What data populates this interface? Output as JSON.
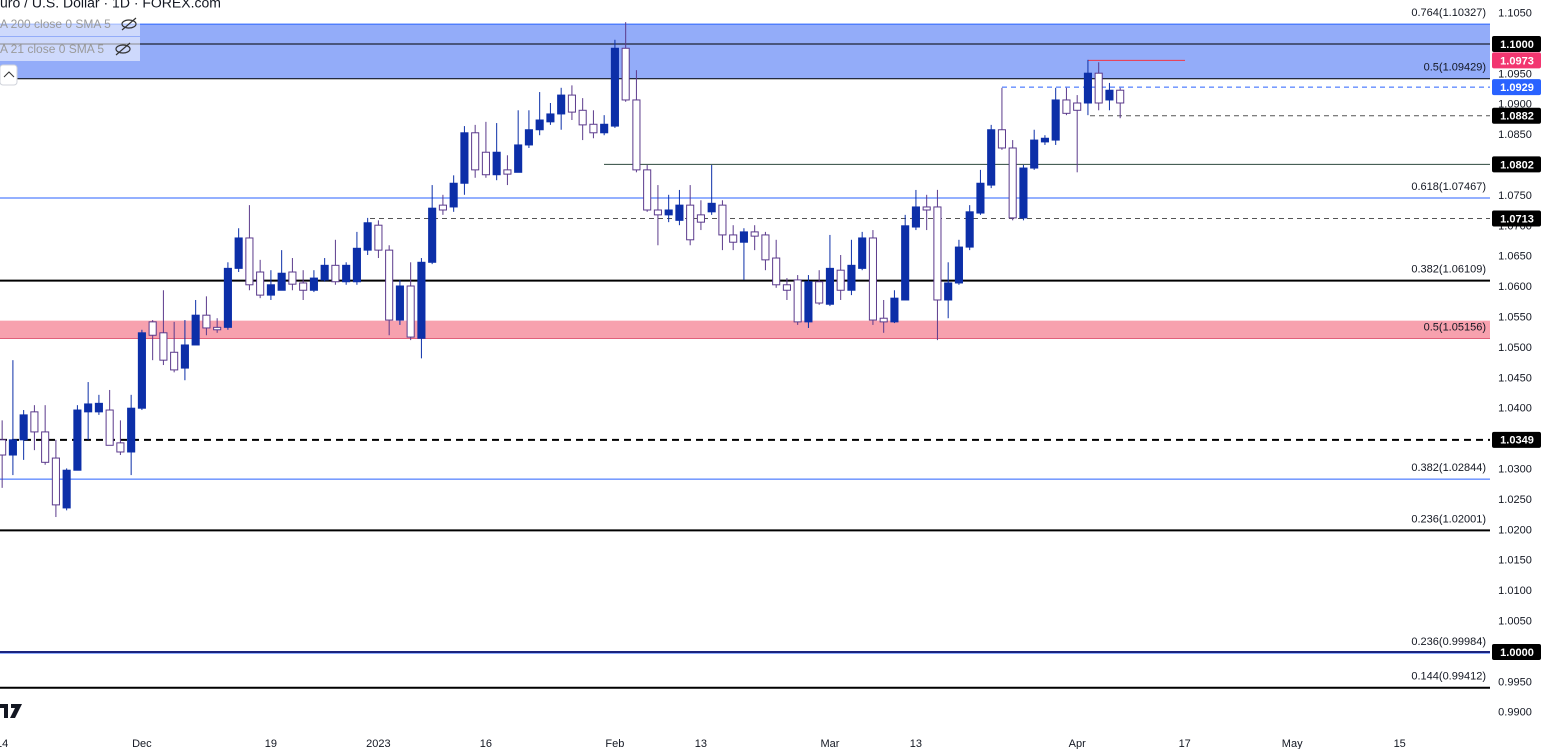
{
  "header": {
    "title": "uro / U.S. Dollar · 1D · FOREX.com",
    "indicators": [
      "A 200 close 0 SMA 5",
      "A 21 close 0 SMA 5"
    ]
  },
  "chart_data": {
    "type": "candlestick",
    "up_color": "#0c2fa8",
    "down_color": "#ffffff",
    "down_border": "#5b3a8c",
    "ohlc": [
      [
        1.0349,
        1.0381,
        1.027,
        1.0324
      ],
      [
        1.0324,
        1.048,
        1.0291,
        1.0349
      ],
      [
        1.0349,
        1.0398,
        1.0316,
        1.039
      ],
      [
        1.0395,
        1.0406,
        1.0332,
        1.0362
      ],
      [
        1.0362,
        1.0406,
        1.0308,
        1.0312
      ],
      [
        1.0319,
        1.0349,
        1.0222,
        1.0242
      ],
      [
        1.0237,
        1.0302,
        1.0233,
        1.0299
      ],
      [
        1.0299,
        1.0406,
        1.0299,
        1.0398
      ],
      [
        1.0395,
        1.0444,
        1.0349,
        1.0408
      ],
      [
        1.0395,
        1.0423,
        1.039,
        1.0409
      ],
      [
        1.0398,
        1.0431,
        1.034,
        1.034
      ],
      [
        1.0344,
        1.0381,
        1.0324,
        1.0329
      ],
      [
        1.0329,
        1.0423,
        1.0291,
        1.0401
      ],
      [
        1.0401,
        1.053,
        1.0398,
        1.0525
      ],
      [
        1.0543,
        1.0546,
        1.048,
        1.0521
      ],
      [
        1.0525,
        1.0595,
        1.0472,
        1.048
      ],
      [
        1.0493,
        1.0543,
        1.046,
        1.0464
      ],
      [
        1.0467,
        1.0546,
        1.0447,
        1.0505
      ],
      [
        1.0505,
        1.0579,
        1.0505,
        1.0554
      ],
      [
        1.0554,
        1.0585,
        1.0521,
        1.0533
      ],
      [
        1.0534,
        1.0549,
        1.0525,
        1.053
      ],
      [
        1.0534,
        1.0641,
        1.053,
        1.0631
      ],
      [
        1.0631,
        1.0697,
        1.0625,
        1.0681
      ],
      [
        1.0681,
        1.0735,
        1.0595,
        1.0604
      ],
      [
        1.0625,
        1.0645,
        1.0582,
        1.0587
      ],
      [
        1.0587,
        1.0628,
        1.0579,
        1.0604
      ],
      [
        1.0595,
        1.0661,
        1.0595,
        1.0623
      ],
      [
        1.0625,
        1.0648,
        1.0595,
        1.0605
      ],
      [
        1.0607,
        1.0628,
        1.0579,
        1.0595
      ],
      [
        1.0595,
        1.0628,
        1.0592,
        1.0615
      ],
      [
        1.0612,
        1.0648,
        1.0609,
        1.0636
      ],
      [
        1.0636,
        1.0678,
        1.0604,
        1.0609
      ],
      [
        1.0609,
        1.0641,
        1.0604,
        1.0636
      ],
      [
        1.0609,
        1.0691,
        1.0604,
        1.0664
      ],
      [
        1.0661,
        1.0714,
        1.0653,
        1.0706
      ],
      [
        1.0702,
        1.071,
        1.0648,
        1.0661
      ],
      [
        1.0661,
        1.0669,
        1.0521,
        1.0546
      ],
      [
        1.0546,
        1.0612,
        1.0538,
        1.0602
      ],
      [
        1.0602,
        1.0641,
        1.0513,
        1.0518
      ],
      [
        1.0516,
        1.0648,
        1.0483,
        1.0641
      ],
      [
        1.0641,
        1.0768,
        1.0638,
        1.073
      ],
      [
        1.0735,
        1.0752,
        1.0719,
        1.0727
      ],
      [
        1.0732,
        1.0784,
        1.0724,
        1.0771
      ],
      [
        1.0771,
        1.0865,
        1.0752,
        1.0854
      ],
      [
        1.0854,
        1.0867,
        1.078,
        1.0793
      ],
      [
        1.0822,
        1.0872,
        1.078,
        1.0785
      ],
      [
        1.0785,
        1.087,
        1.0776,
        1.0822
      ],
      [
        1.0793,
        1.0817,
        1.0768,
        1.0786
      ],
      [
        1.0789,
        1.0891,
        1.0789,
        1.0834
      ],
      [
        1.0834,
        1.0891,
        1.0829,
        1.0859
      ],
      [
        1.0859,
        1.0921,
        1.085,
        1.0875
      ],
      [
        1.0872,
        1.0903,
        1.0867,
        1.0885
      ],
      [
        1.0885,
        1.0928,
        1.0859,
        1.0916
      ],
      [
        1.0916,
        1.0932,
        1.0875,
        1.0888
      ],
      [
        1.0891,
        1.0911,
        1.0842,
        1.0867
      ],
      [
        1.0868,
        1.0891,
        1.0845,
        1.0854
      ],
      [
        1.0854,
        1.0883,
        1.085,
        1.0868
      ],
      [
        1.0865,
        1.1007,
        1.0862,
        1.0993
      ],
      [
        1.0993,
        1.1036,
        1.0905,
        1.0908
      ],
      [
        1.0908,
        1.0957,
        1.0789,
        1.0793
      ],
      [
        1.0793,
        1.0801,
        1.0724,
        1.0727
      ],
      [
        1.0727,
        1.0768,
        1.0669,
        1.0719
      ],
      [
        1.0719,
        1.0752,
        1.0707,
        1.0727
      ],
      [
        1.071,
        1.076,
        1.0702,
        1.0735
      ],
      [
        1.0735,
        1.0768,
        1.0669,
        1.0678
      ],
      [
        1.0719,
        1.0743,
        1.0694,
        1.0707
      ],
      [
        1.0724,
        1.0801,
        1.0719,
        1.0738
      ],
      [
        1.0735,
        1.0743,
        1.0661,
        1.0686
      ],
      [
        1.0686,
        1.0702,
        1.0661,
        1.0674
      ],
      [
        1.0674,
        1.0697,
        1.0612,
        1.0691
      ],
      [
        1.0691,
        1.0702,
        1.0661,
        1.0684
      ],
      [
        1.0686,
        1.0691,
        1.0628,
        1.0645
      ],
      [
        1.0648,
        1.0678,
        1.0599,
        1.0604
      ],
      [
        1.0604,
        1.0615,
        1.0579,
        1.0595
      ],
      [
        1.0612,
        1.062,
        1.0538,
        1.0543
      ],
      [
        1.0543,
        1.062,
        1.0533,
        1.0609
      ],
      [
        1.0609,
        1.0628,
        1.0571,
        1.0574
      ],
      [
        1.0572,
        1.0686,
        1.0569,
        1.0631
      ],
      [
        1.0628,
        1.0653,
        1.0579,
        1.0595
      ],
      [
        1.0595,
        1.0678,
        1.0587,
        1.0636
      ],
      [
        1.0631,
        1.0691,
        1.0628,
        1.0681
      ],
      [
        1.0681,
        1.0694,
        1.0538,
        1.0546
      ],
      [
        1.0549,
        1.0579,
        1.0525,
        1.0543
      ],
      [
        1.0543,
        1.0595,
        1.0541,
        1.0582
      ],
      [
        1.0579,
        1.0719,
        1.0579,
        1.0701
      ],
      [
        1.0699,
        1.076,
        1.0694,
        1.0732
      ],
      [
        1.0732,
        1.0752,
        1.0694,
        1.0727
      ],
      [
        1.0732,
        1.076,
        1.0513,
        1.0579
      ],
      [
        1.0579,
        1.0641,
        1.0549,
        1.0607
      ],
      [
        1.0607,
        1.0678,
        1.0604,
        1.0666
      ],
      [
        1.0666,
        1.0735,
        1.0661,
        1.0724
      ],
      [
        1.0722,
        1.0793,
        1.0719,
        1.0771
      ],
      [
        1.0768,
        1.0867,
        1.0763,
        1.0859
      ],
      [
        1.0859,
        1.0928,
        1.0826,
        1.0829
      ],
      [
        1.0829,
        1.0842,
        1.071,
        1.0714
      ],
      [
        1.0714,
        1.0801,
        1.071,
        1.0796
      ],
      [
        1.0796,
        1.0859,
        1.0793,
        1.0842
      ],
      [
        1.0839,
        1.085,
        1.0834,
        1.0845
      ],
      [
        1.0842,
        1.0928,
        1.0834,
        1.0908
      ],
      [
        1.0908,
        1.0928,
        1.0883,
        1.0886
      ],
      [
        1.0903,
        1.0916,
        1.0789,
        1.0891
      ],
      [
        1.0903,
        1.0974,
        1.0883,
        1.0952
      ],
      [
        1.0952,
        1.097,
        1.0891,
        1.0903
      ],
      [
        1.0908,
        1.0936,
        1.0891,
        1.0924
      ],
      [
        1.0924,
        1.0928,
        1.0878,
        1.0903
      ]
    ],
    "xlim": [
      -0.2,
      138.4
    ],
    "xticks": [
      {
        "value": 0,
        "label": "14"
      },
      {
        "value": 13,
        "label": "Dec"
      },
      {
        "value": 25,
        "label": "19"
      },
      {
        "value": 35,
        "label": "2023"
      },
      {
        "value": 45,
        "label": "16"
      },
      {
        "value": 57,
        "label": "Feb"
      },
      {
        "value": 65,
        "label": "13"
      },
      {
        "value": 77,
        "label": "Mar"
      },
      {
        "value": 85,
        "label": "13"
      },
      {
        "value": 100,
        "label": "Apr"
      },
      {
        "value": 110,
        "label": "17"
      },
      {
        "value": 120,
        "label": "May"
      },
      {
        "value": 130,
        "label": "15"
      }
    ],
    "ylim": [
      0.98635,
      1.10724
    ],
    "yticks": [
      {
        "value": 1.105,
        "label": "1.1050"
      },
      {
        "value": 1.095,
        "label": "1.0950"
      },
      {
        "value": 1.09,
        "label": "1.0900"
      },
      {
        "value": 1.085,
        "label": "1.0850"
      },
      {
        "value": 1.075,
        "label": "1.0750"
      },
      {
        "value": 1.07,
        "label": "1.0700"
      },
      {
        "value": 1.065,
        "label": "1.0650"
      },
      {
        "value": 1.06,
        "label": "1.0600"
      },
      {
        "value": 1.055,
        "label": "1.0550"
      },
      {
        "value": 1.05,
        "label": "1.0500"
      },
      {
        "value": 1.045,
        "label": "1.0450"
      },
      {
        "value": 1.04,
        "label": "1.0400"
      },
      {
        "value": 1.03,
        "label": "1.0300"
      },
      {
        "value": 1.025,
        "label": "1.0250"
      },
      {
        "value": 1.02,
        "label": "1.0200"
      },
      {
        "value": 1.015,
        "label": "1.0150"
      },
      {
        "value": 1.01,
        "label": "1.0100"
      },
      {
        "value": 1.005,
        "label": "1.0050"
      },
      {
        "value": 0.995,
        "label": "0.9950"
      },
      {
        "value": 0.99,
        "label": "0.9900"
      }
    ],
    "grid": false,
    "zones": [
      {
        "from": 1.09429,
        "to": 1.10327,
        "color": "#93acf9"
      },
      {
        "from": 1.05156,
        "to": 1.0545,
        "color": "#f7a1ae"
      }
    ],
    "levels": [
      {
        "value": 1.10327,
        "label": "0.764(1.10327)",
        "color": "#2962ff",
        "style": "solid"
      },
      {
        "value": 1.1,
        "tag": "1.1000",
        "tag_color": "#000000",
        "color": "#000000",
        "style": "solid"
      },
      {
        "value": 1.09429,
        "label": "0.5(1.09429)",
        "color": "#000000",
        "style": "solid"
      },
      {
        "value": 1.0973,
        "tag": "1.0973",
        "tag_color": "#f23670",
        "color": "#f23645",
        "style": "solid"
      },
      {
        "value": 1.0929,
        "tag": "1.0929",
        "tag_color": "#2962ff",
        "color": "#2962ff",
        "style": "dashed"
      },
      {
        "value": 1.0882,
        "tag": "1.0882",
        "tag_color": "#000000",
        "color": "#555555",
        "style": "dashed"
      },
      {
        "value": 1.0802,
        "tag": "1.0802",
        "tag_color": "#000000",
        "color": "#2e4a3e",
        "style": "solid"
      },
      {
        "value": 1.07467,
        "label": "0.618(1.07467)",
        "color": "#2962ff",
        "style": "solid"
      },
      {
        "value": 1.0713,
        "tag": "1.0713",
        "tag_color": "#000000",
        "color": "#555555",
        "style": "dashed"
      },
      {
        "value": 1.06109,
        "label": "0.382(1.06109)",
        "color": "#000000",
        "style": "thick"
      },
      {
        "value": 1.05156,
        "label": "0.5(1.05156)",
        "color": "#e0607a",
        "style": "solid"
      },
      {
        "value": 1.0349,
        "tag": "1.0349",
        "tag_color": "#000000",
        "color": "#000000",
        "style": "thick-dashed"
      },
      {
        "value": 1.02844,
        "label": "0.382(1.02844)",
        "color": "#2962ff",
        "style": "solid"
      },
      {
        "value": 1.02001,
        "label": "0.236(1.02001)",
        "color": "#000000",
        "style": "thick"
      },
      {
        "value": 0.99984,
        "label": "0.236(0.99984)",
        "color": "#2962ff",
        "style": "solid"
      },
      {
        "value": 1.0,
        "tag": "1.0000",
        "tag_color": "#000000",
        "color": "#1a237e",
        "style": "thick"
      },
      {
        "value": 0.99412,
        "label": "0.144(0.99412)",
        "color": "#000000",
        "style": "thick"
      }
    ]
  }
}
